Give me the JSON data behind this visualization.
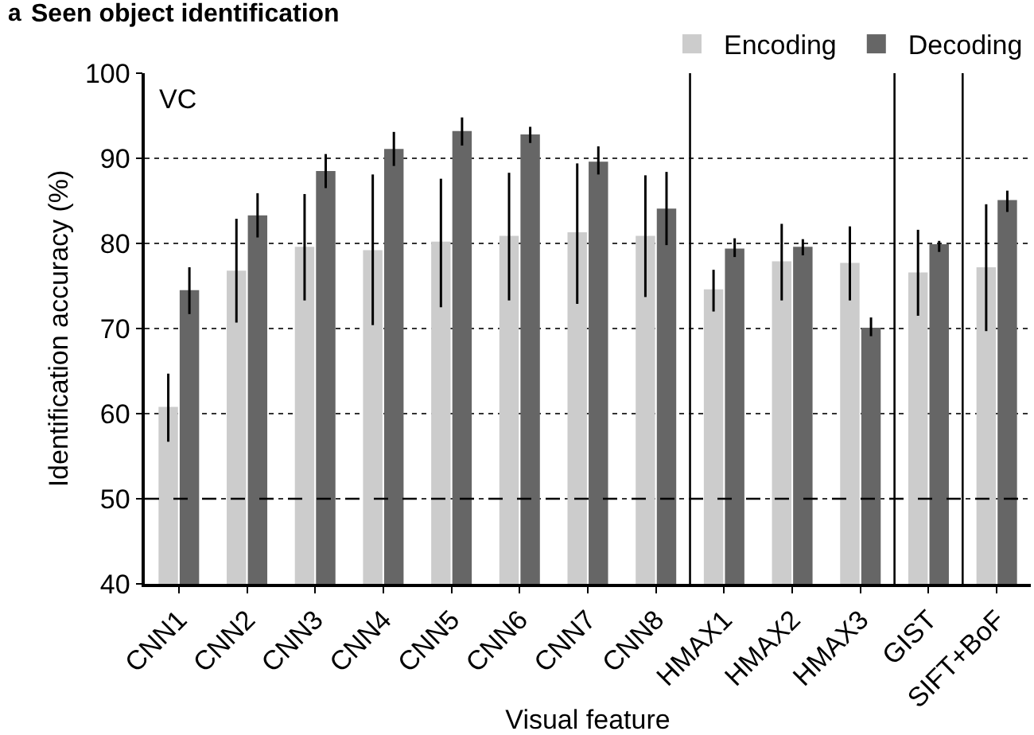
{
  "chart_data": {
    "type": "bar",
    "title": "Seen object identification",
    "xlabel": "Visual feature",
    "ylabel": "Identification accuracy (%)",
    "categories": [
      "CNN1",
      "CNN2",
      "CNN3",
      "CNN4",
      "CNN5",
      "CNN6",
      "CNN7",
      "CNN8",
      "HMAX1",
      "HMAX2",
      "HMAX3",
      "GIST",
      "SIFT+BoF"
    ],
    "series": [
      {
        "name": "Encoding",
        "color": "#cccccc",
        "values": [
          60.8,
          76.8,
          79.6,
          79.2,
          80.2,
          80.9,
          81.3,
          80.9,
          74.6,
          77.9,
          77.7,
          76.6,
          77.2
        ],
        "errors": [
          [
            56.7,
            64.7
          ],
          [
            70.7,
            82.9
          ],
          [
            73.3,
            85.8
          ],
          [
            70.4,
            88.1
          ],
          [
            72.5,
            87.6
          ],
          [
            73.3,
            88.3
          ],
          [
            72.9,
            89.4
          ],
          [
            73.7,
            88.0
          ],
          [
            72.0,
            76.9
          ],
          [
            73.3,
            82.3
          ],
          [
            73.3,
            82.0
          ],
          [
            71.5,
            81.6
          ],
          [
            69.7,
            84.6
          ]
        ]
      },
      {
        "name": "Decoding",
        "color": "#666666",
        "values": [
          74.5,
          83.3,
          88.5,
          91.1,
          93.2,
          92.8,
          89.6,
          84.1,
          79.4,
          79.6,
          70.1,
          79.9,
          85.1
        ],
        "errors": [
          [
            71.7,
            77.2
          ],
          [
            80.7,
            85.9
          ],
          [
            86.5,
            90.5
          ],
          [
            89.1,
            93.1
          ],
          [
            91.5,
            94.8
          ],
          [
            91.8,
            93.7
          ],
          [
            88.1,
            91.4
          ],
          [
            79.8,
            88.4
          ],
          [
            78.4,
            80.6
          ],
          [
            78.6,
            80.5
          ],
          [
            69.1,
            71.3
          ],
          [
            79.0,
            80.3
          ],
          [
            83.7,
            86.2
          ]
        ]
      }
    ],
    "ylim": [
      40,
      100
    ],
    "yticks": [
      40,
      50,
      60,
      70,
      80,
      90,
      100
    ],
    "grid": "y",
    "legend": "top right",
    "ref_lines": [
      {
        "axis": "y",
        "value": 50,
        "color": "#000000",
        "line_style": "dashed"
      }
    ],
    "annotations": [
      "a",
      "VC"
    ]
  }
}
